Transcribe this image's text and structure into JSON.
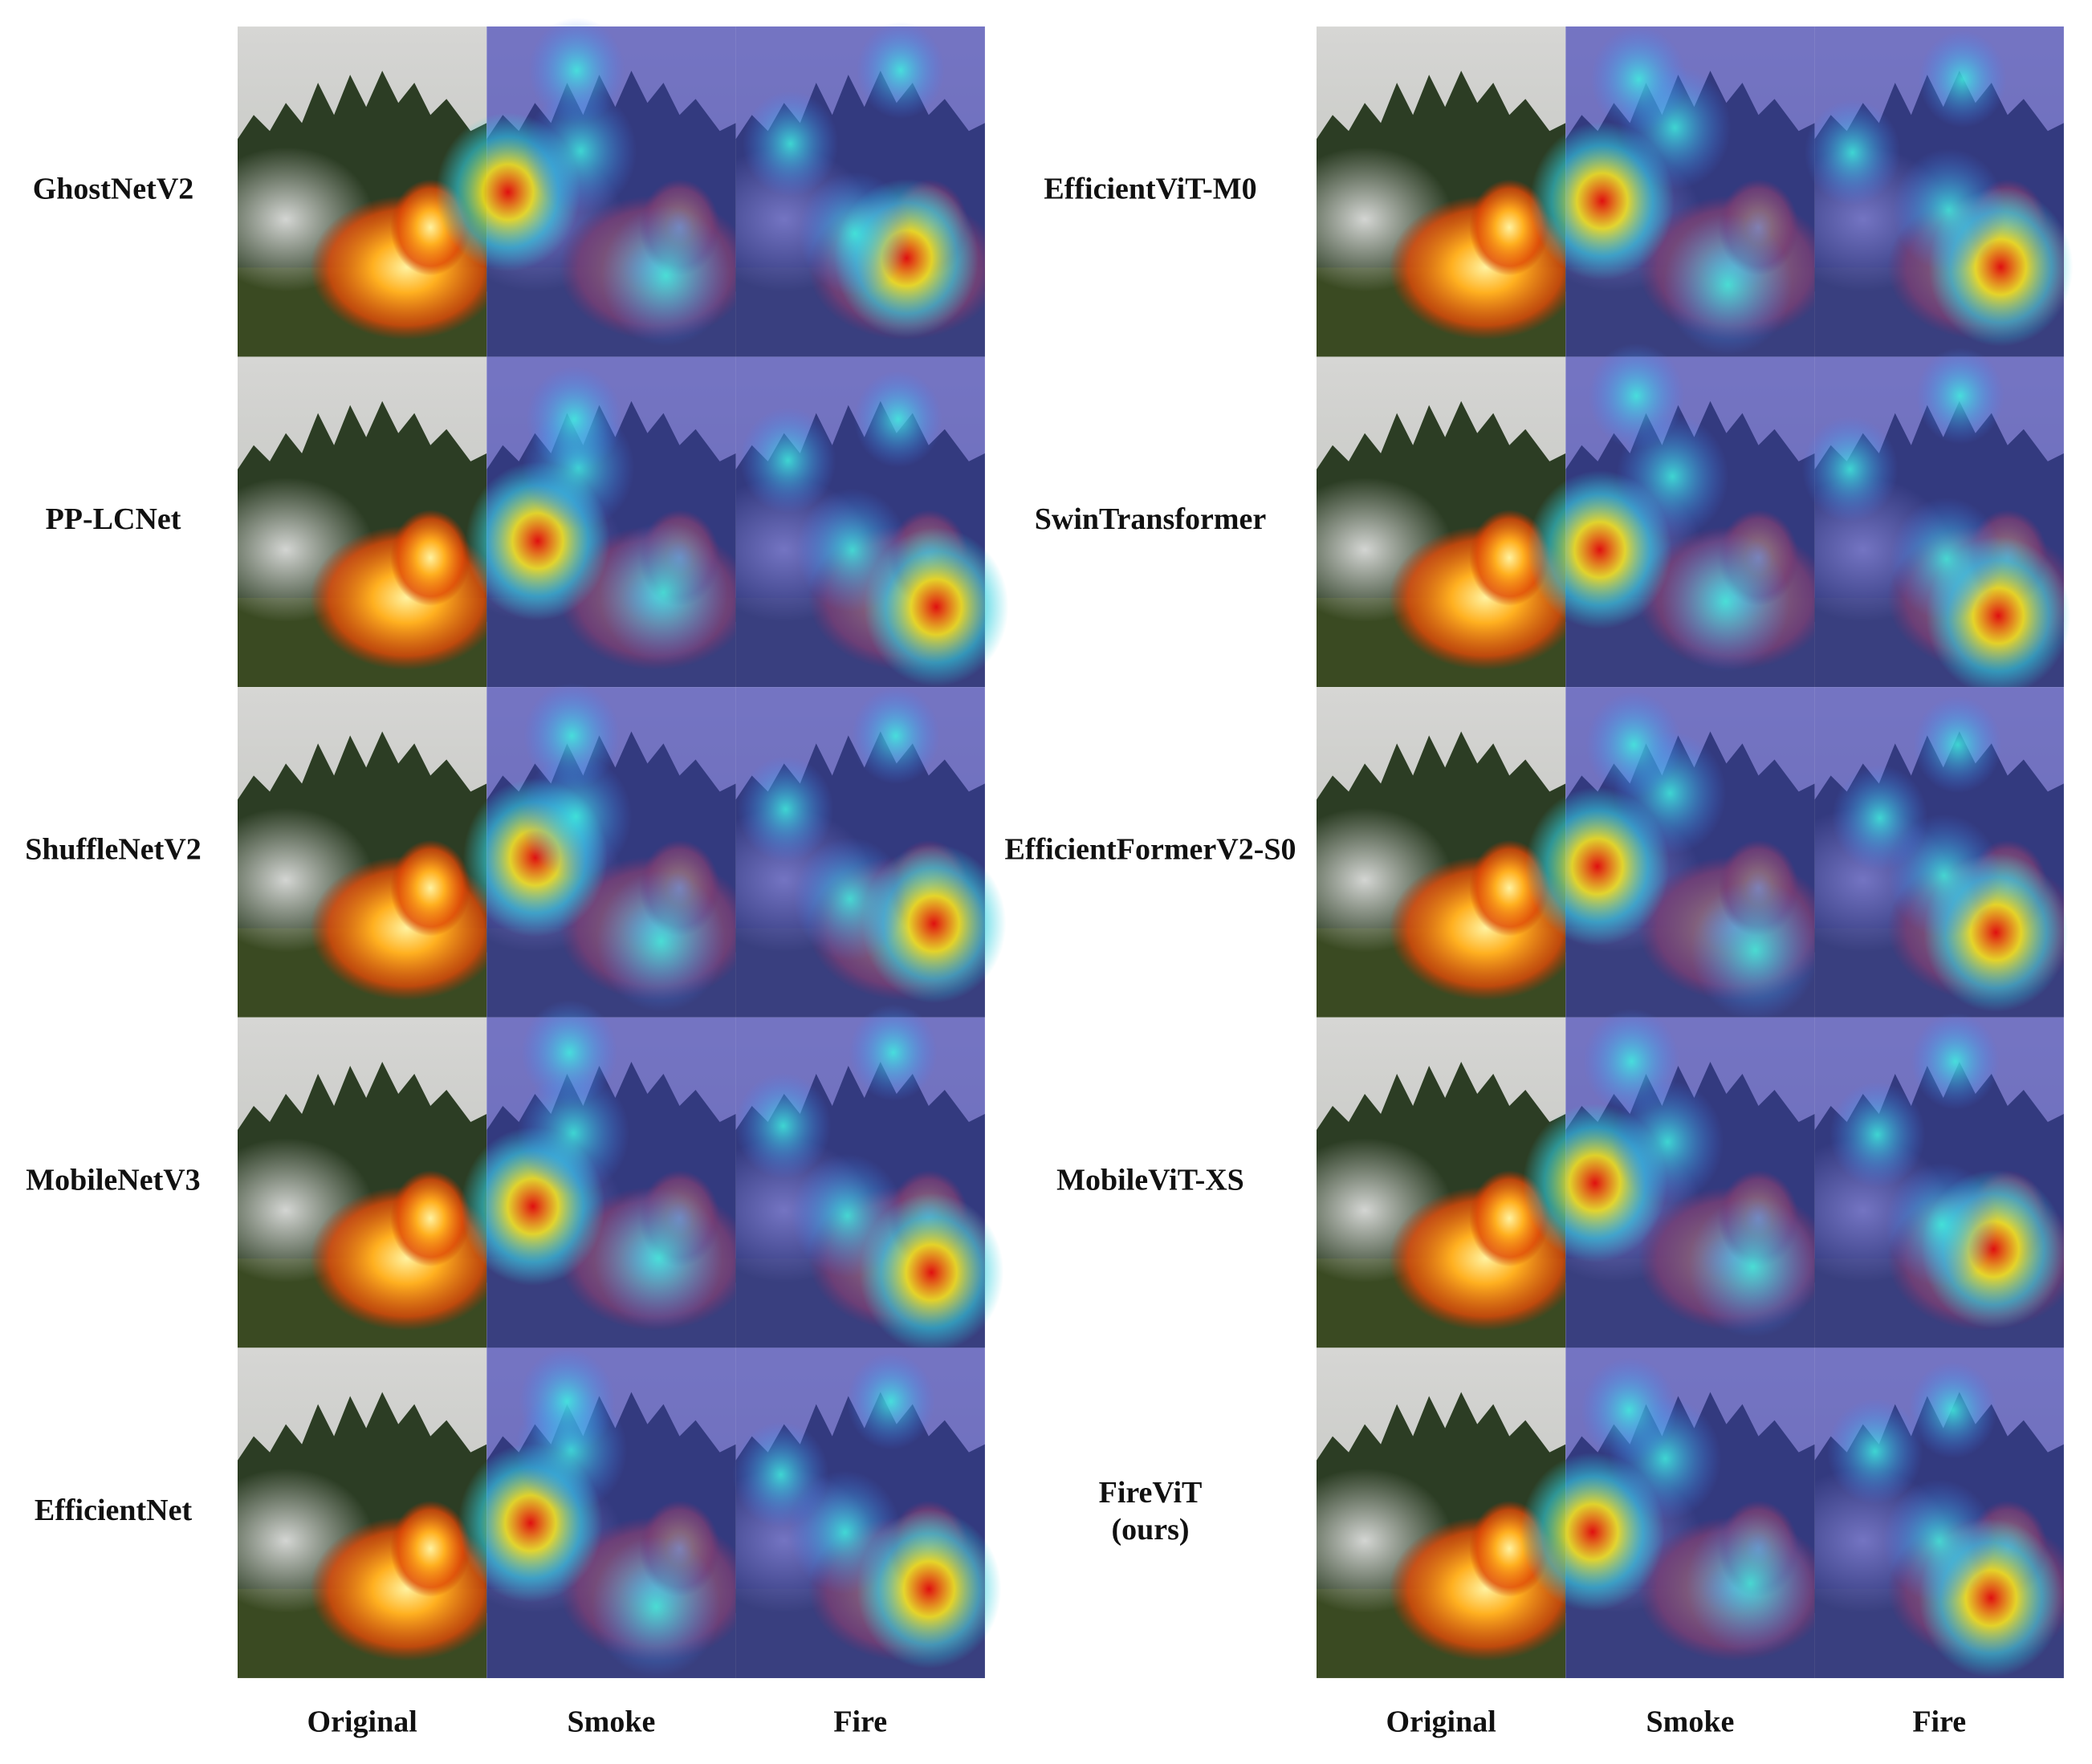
{
  "panels": [
    {
      "models": [
        {
          "label": "GhostNetV2"
        },
        {
          "label": "PP-LCNet"
        },
        {
          "label": "ShuffleNetV2"
        },
        {
          "label": "MobileNetV3"
        },
        {
          "label": "EfficientNet"
        }
      ],
      "columns": [
        "Original",
        "Smoke",
        "Fire"
      ]
    },
    {
      "models": [
        {
          "label": "EfficientViT-M0"
        },
        {
          "label": "SwinTransformer"
        },
        {
          "label": "EfficientFormerV2-S0"
        },
        {
          "label": "MobileViT-XS"
        },
        {
          "label": "FireViT",
          "note": "(ours)"
        }
      ],
      "columns": [
        "Original",
        "Smoke",
        "Fire"
      ]
    }
  ]
}
